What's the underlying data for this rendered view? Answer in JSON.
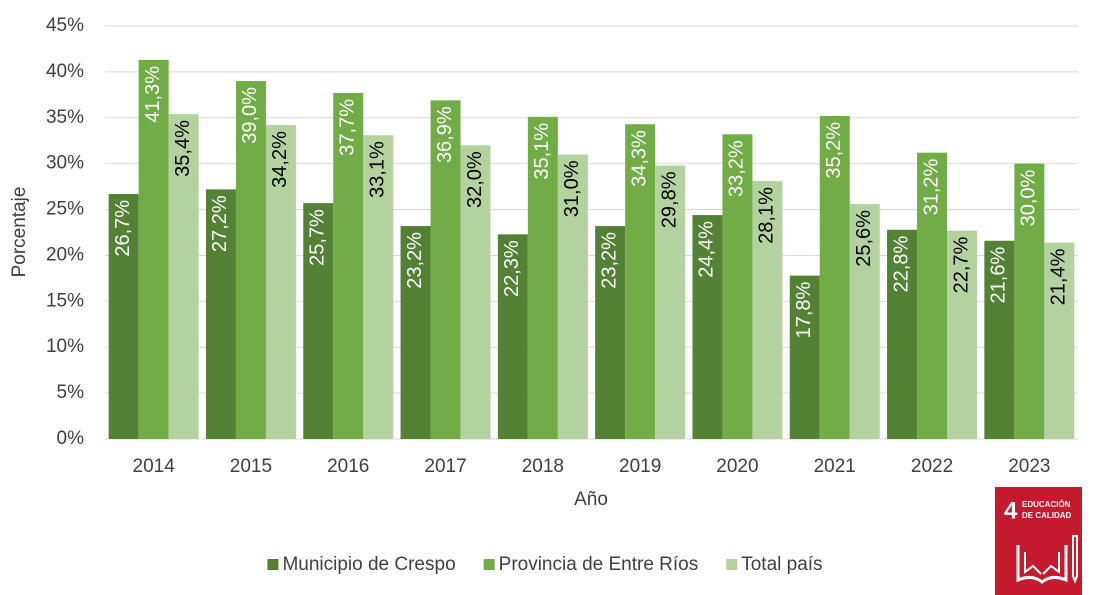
{
  "chart_data": {
    "type": "bar",
    "x_label": "Año",
    "y_label": "Porcentaje",
    "categories": [
      "2014",
      "2015",
      "2016",
      "2017",
      "2018",
      "2019",
      "2020",
      "2021",
      "2022",
      "2023"
    ],
    "series": [
      {
        "name": "Municipio de Crespo",
        "color": "#548235",
        "values": [
          26.7,
          27.2,
          25.7,
          23.2,
          22.3,
          23.2,
          24.4,
          17.8,
          22.8,
          21.6
        ],
        "value_labels": [
          "26,7%",
          "27,2%",
          "25,7%",
          "23,2%",
          "22,3%",
          "23,2%",
          "24,4%",
          "17,8%",
          "22,8%",
          "21,6%"
        ]
      },
      {
        "name": "Provincia de Entre Ríos",
        "color": "#70ad47",
        "values": [
          41.3,
          39.0,
          37.7,
          36.9,
          35.1,
          34.3,
          33.2,
          35.2,
          31.2,
          30.0
        ],
        "value_labels": [
          "41,3%",
          "39,0%",
          "37,7%",
          "36,9%",
          "35,1%",
          "34,3%",
          "33,2%",
          "35,2%",
          "31,2%",
          "30,0%"
        ]
      },
      {
        "name": "Total país",
        "color": "#b4d29e",
        "values": [
          35.4,
          34.2,
          33.1,
          32.0,
          31.0,
          29.8,
          28.1,
          25.6,
          22.7,
          21.4
        ],
        "value_labels": [
          "35,4%",
          "34,2%",
          "33,1%",
          "32,0%",
          "31,0%",
          "29,8%",
          "28,1%",
          "25,6%",
          "22,7%",
          "21,4%"
        ]
      }
    ],
    "ylim": [
      0,
      45
    ],
    "yticks": [
      {
        "value": 0,
        "label": "0%"
      },
      {
        "value": 5,
        "label": "5%"
      },
      {
        "value": 10,
        "label": "10%"
      },
      {
        "value": 15,
        "label": "15%"
      },
      {
        "value": 20,
        "label": "20%"
      },
      {
        "value": 25,
        "label": "25%"
      },
      {
        "value": 30,
        "label": "30%"
      },
      {
        "value": 35,
        "label": "35%"
      },
      {
        "value": 40,
        "label": "40%"
      },
      {
        "value": 45,
        "label": "45%"
      }
    ],
    "grid": true,
    "legend": "bottom"
  },
  "badge": {
    "number": "4",
    "text": [
      "EDUCACIÓN",
      "DE CALIDAD"
    ]
  }
}
